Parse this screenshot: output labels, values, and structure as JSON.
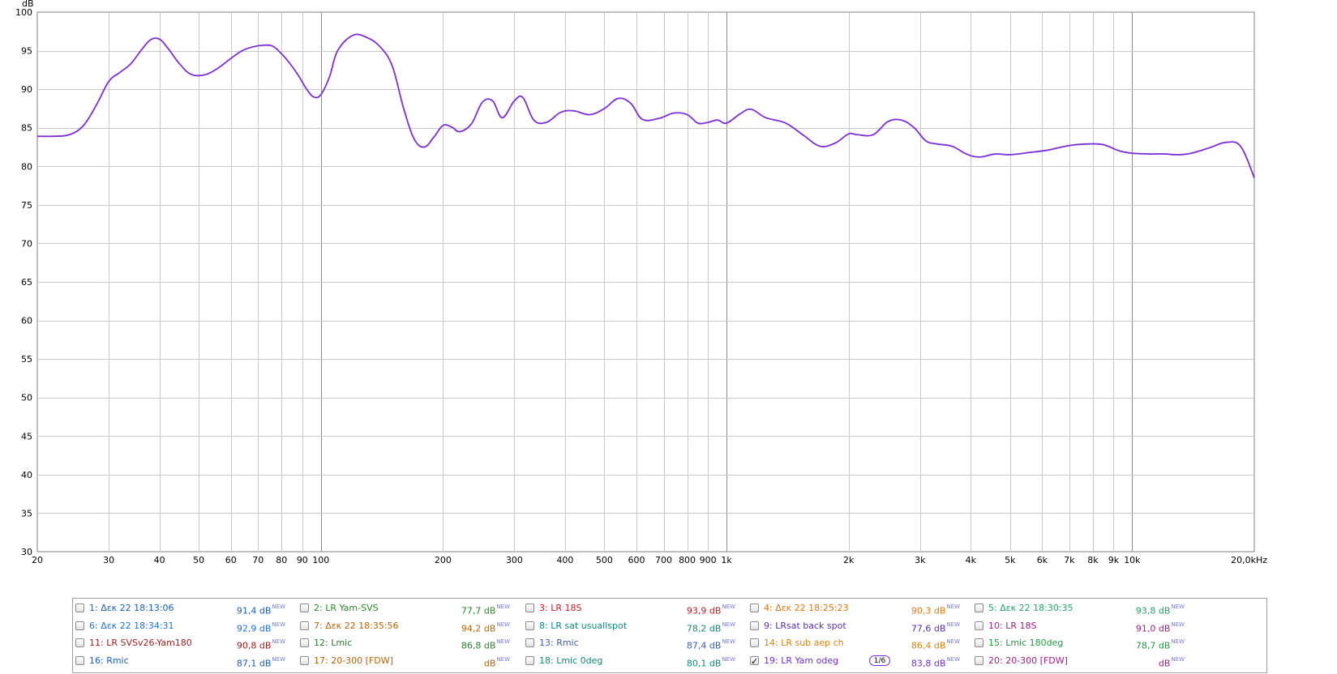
{
  "chart_data": {
    "type": "line",
    "y_unit_label": "dB",
    "ylim": [
      30,
      100
    ],
    "yticks": [
      "100",
      "95",
      "90",
      "85",
      "80",
      "75",
      "70",
      "65",
      "60",
      "55",
      "50",
      "45",
      "40",
      "35",
      "30"
    ],
    "x_scale": "log",
    "xlim": [
      20,
      20000
    ],
    "xtick_labels": [
      {
        "f": 20,
        "label": "20"
      },
      {
        "f": 30,
        "label": "30"
      },
      {
        "f": 40,
        "label": "40"
      },
      {
        "f": 50,
        "label": "50"
      },
      {
        "f": 60,
        "label": "60"
      },
      {
        "f": 70,
        "label": "70"
      },
      {
        "f": 80,
        "label": "80"
      },
      {
        "f": 90,
        "label": "90"
      },
      {
        "f": 100,
        "label": "100"
      },
      {
        "f": 200,
        "label": "200"
      },
      {
        "f": 300,
        "label": "300"
      },
      {
        "f": 400,
        "label": "400"
      },
      {
        "f": 500,
        "label": "500"
      },
      {
        "f": 600,
        "label": "600"
      },
      {
        "f": 700,
        "label": "700"
      },
      {
        "f": 800,
        "label": "800"
      },
      {
        "f": 900,
        "label": "900"
      },
      {
        "f": 1000,
        "label": "1k"
      },
      {
        "f": 2000,
        "label": "2k"
      },
      {
        "f": 3000,
        "label": "3k"
      },
      {
        "f": 4000,
        "label": "4k"
      },
      {
        "f": 5000,
        "label": "5k"
      },
      {
        "f": 6000,
        "label": "6k"
      },
      {
        "f": 7000,
        "label": "7k"
      },
      {
        "f": 8000,
        "label": "8k"
      },
      {
        "f": 9000,
        "label": "9k"
      },
      {
        "f": 10000,
        "label": "10k"
      },
      {
        "f": 20000,
        "label": "20,0kHz"
      }
    ],
    "grid": true,
    "series": [
      {
        "name": "19: LR Yam odeg",
        "color": "#7b2fd6",
        "x": [
          20,
          22,
          24,
          26,
          28,
          30,
          32,
          34,
          36,
          38,
          40,
          42,
          45,
          48,
          52,
          56,
          60,
          64,
          68,
          72,
          76,
          80,
          84,
          88,
          92,
          96,
          100,
          105,
          110,
          120,
          130,
          140,
          150,
          160,
          170,
          180,
          190,
          200,
          210,
          220,
          235,
          250,
          265,
          280,
          300,
          315,
          335,
          360,
          390,
          420,
          460,
          500,
          540,
          580,
          620,
          680,
          740,
          800,
          850,
          900,
          950,
          1000,
          1080,
          1150,
          1250,
          1400,
          1550,
          1700,
          1850,
          2000,
          2100,
          2300,
          2500,
          2700,
          2900,
          3100,
          3300,
          3600,
          3900,
          4200,
          4600,
          5000,
          5600,
          6200,
          7000,
          7800,
          8500,
          9300,
          10000,
          11000,
          12000,
          13000,
          14000,
          15500,
          17000,
          18500,
          20000
        ],
        "values": [
          83.9,
          83.9,
          84.1,
          85.3,
          88.0,
          91.0,
          92.2,
          93.3,
          95.0,
          96.4,
          96.5,
          95.3,
          93.2,
          91.9,
          91.9,
          92.8,
          94.0,
          95.0,
          95.5,
          95.7,
          95.6,
          94.6,
          93.3,
          91.8,
          90.1,
          89.0,
          89.3,
          91.6,
          95.0,
          97.0,
          96.7,
          95.5,
          93.0,
          87.5,
          83.5,
          82.5,
          83.8,
          85.3,
          85.1,
          84.5,
          85.5,
          88.3,
          88.5,
          86.3,
          88.5,
          88.9,
          86.0,
          85.7,
          87.0,
          87.2,
          86.7,
          87.5,
          88.8,
          88.2,
          86.1,
          86.2,
          86.9,
          86.7,
          85.6,
          85.7,
          86.0,
          85.6,
          86.8,
          87.4,
          86.3,
          85.6,
          84.0,
          82.6,
          83.0,
          84.2,
          84.1,
          84.1,
          85.8,
          86.0,
          85.0,
          83.3,
          82.9,
          82.6,
          81.6,
          81.2,
          81.6,
          81.5,
          81.8,
          82.1,
          82.7,
          82.9,
          82.8,
          82.0,
          81.7,
          81.6,
          81.6,
          81.5,
          81.7,
          82.4,
          83.1,
          82.6,
          78.5
        ]
      }
    ]
  },
  "legend": {
    "rows": [
      [
        {
          "name": "1: Δεκ 22 18:13:06",
          "value": "91,4 dB",
          "color": "#1a5fb4",
          "checked": false
        },
        {
          "name": "2: LR Yam-SVS",
          "value": "77,7 dB",
          "color": "#2a8a2a",
          "checked": false
        },
        {
          "name": "3: LR 18S",
          "value": "93,9 dB",
          "color": "#c01c28",
          "checked": false
        },
        {
          "name": "4: Δεκ 22 18:25:23",
          "value": "90,3 dB",
          "color": "#e07a10",
          "checked": false
        },
        {
          "name": "5: Δεκ 22 18:30:35",
          "value": "93,8 dB",
          "color": "#26a269",
          "checked": false
        }
      ],
      [
        {
          "name": "6: Δεκ 22 18:34:31",
          "value": "92,9 dB",
          "color": "#1c71d8",
          "checked": false
        },
        {
          "name": "7: Δεκ 22 18:35:56",
          "value": "94,2 dB",
          "color": "#b5640d",
          "checked": false
        },
        {
          "name": "8: LR sat usuallspot",
          "value": "78,2 dB",
          "color": "#0e8a7a",
          "checked": false
        },
        {
          "name": "9: LRsat back spot",
          "value": "77,6 dB",
          "color": "#5a2fb0",
          "checked": false
        },
        {
          "name": "10: LR 18S",
          "value": "91,0 dB",
          "color": "#a02080",
          "checked": false
        }
      ],
      [
        {
          "name": "11: LR SVSv26-Yam180",
          "value": "90,8 dB",
          "color": "#9b1c1c",
          "checked": false
        },
        {
          "name": "12: Lmic",
          "value": "86,8 dB",
          "color": "#2e7d32",
          "checked": false
        },
        {
          "name": "13: Rmic",
          "value": "87,4 dB",
          "color": "#3a5fb0",
          "checked": false
        },
        {
          "name": "14: LR sub aep ch",
          "value": "86,4 dB",
          "color": "#d9820a",
          "checked": false
        },
        {
          "name": "15: Lmic 180deg",
          "value": "78,7 dB",
          "color": "#1e9e3e",
          "checked": false
        }
      ],
      [
        {
          "name": "16: Rmic",
          "value": "87,1 dB",
          "color": "#1a5fb4",
          "checked": false
        },
        {
          "name": "17: 20-300 [FDW]",
          "value": "dB",
          "color": "#b5640d",
          "checked": false
        },
        {
          "name": "18: Lmic 0deg",
          "value": "80,1 dB",
          "color": "#0e8a7a",
          "checked": false
        },
        {
          "name": "19: LR Yam odeg",
          "value": "83,8 dB",
          "color": "#6a2fd0",
          "checked": true,
          "smoothing": "1/6"
        },
        {
          "name": "20: 20-300 [FDW]",
          "value": "dB",
          "color": "#a02080",
          "checked": false
        }
      ]
    ],
    "new_tag": "NEW"
  }
}
